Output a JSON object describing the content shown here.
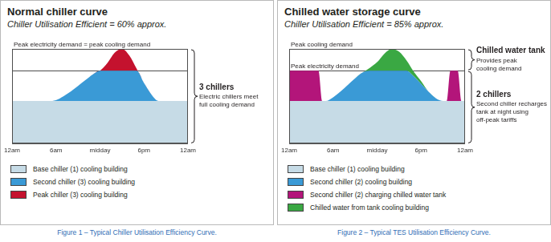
{
  "chart_data": [
    {
      "type": "area",
      "stacked": true,
      "title": "Normal chiller curve",
      "subtitle": "Chiller Utilisation Efficient = 60% approx.",
      "caption": "Figure 1 – Typical Chiller Utilisation Efficiency Curve.",
      "x": [
        0,
        1,
        2,
        3,
        4,
        5,
        6,
        7,
        8,
        9,
        10,
        11,
        12,
        13,
        14,
        15,
        16,
        17,
        18,
        19,
        20,
        21,
        22,
        23,
        24
      ],
      "xlim": [
        0,
        24
      ],
      "xticks": [
        {
          "value": 0,
          "label": "12am"
        },
        {
          "value": 6,
          "label": "6am"
        },
        {
          "value": 12,
          "label": "midday"
        },
        {
          "value": 18,
          "label": "6pm"
        },
        {
          "value": 24,
          "label": "12am"
        }
      ],
      "ylim": [
        0,
        100
      ],
      "yticks": [
        0,
        45,
        77,
        100
      ],
      "grid": true,
      "tick_labels": "x",
      "legend": "bottom",
      "series": [
        {
          "name": "Base chiller (1) cooling building",
          "color": "#c6dbe6",
          "values": [
            45,
            45,
            45,
            45,
            45,
            45,
            45,
            45,
            45,
            45,
            45,
            45,
            45,
            45,
            45,
            45,
            45,
            45,
            45,
            45,
            45,
            45,
            45,
            45,
            45
          ]
        },
        {
          "name": "Second chiller (3) cooling building",
          "color": "#3a9ad6",
          "values": [
            0,
            0,
            0,
            0,
            0,
            0,
            1,
            5,
            10,
            16,
            22,
            28,
            32,
            32,
            32,
            32,
            32,
            32,
            19,
            7,
            0,
            0,
            0,
            0,
            0
          ]
        },
        {
          "name": "Peak chiller (3) cooling building",
          "color": "#c4122e",
          "values": [
            0,
            0,
            0,
            0,
            0,
            0,
            0,
            0,
            0,
            0,
            0,
            0,
            0,
            8,
            19,
            23,
            16,
            2,
            0,
            0,
            0,
            0,
            0,
            0,
            0
          ]
        }
      ],
      "annotations": [
        {
          "text": "Peak electricity demand = peak cooling demand",
          "y": 100
        }
      ],
      "brackets": [
        {
          "from": 0,
          "to": 100,
          "heading": "3 chillers",
          "text": [
            "Electric chillers meet",
            "full cooling demand"
          ]
        }
      ]
    },
    {
      "type": "area",
      "stacked": true,
      "title": "Chilled water storage curve",
      "subtitle": "Chiller Utilisation Efficient = 85% approx.",
      "caption": "Figure 2 – Typical TES Utilisation Efficiency Curve.",
      "x": [
        0,
        1,
        2,
        3,
        4,
        4.5,
        5,
        6,
        7,
        8,
        9,
        10,
        11,
        12,
        13,
        14,
        15,
        16,
        17,
        18,
        19,
        20,
        21,
        21.5,
        22,
        23,
        23.5,
        24
      ],
      "xlim": [
        0,
        24
      ],
      "xticks": [
        {
          "value": 0,
          "label": "12am"
        },
        {
          "value": 6,
          "label": "6am"
        },
        {
          "value": 12,
          "label": "midday"
        },
        {
          "value": 18,
          "label": "6pm"
        },
        {
          "value": 24,
          "label": "12am"
        }
      ],
      "ylim": [
        0,
        100
      ],
      "yticks": [
        0,
        45,
        77,
        100
      ],
      "grid": true,
      "tick_labels": "x",
      "legend": "bottom",
      "series": [
        {
          "name": "Base chiller (1) cooling building",
          "color": "#c6dbe6",
          "values": [
            45,
            45,
            45,
            45,
            45,
            45,
            45,
            45,
            45,
            45,
            45,
            45,
            45,
            45,
            45,
            45,
            45,
            45,
            45,
            45,
            45,
            45,
            45,
            45,
            45,
            45,
            45,
            45
          ]
        },
        {
          "name": "Second chiller (2) cooling building",
          "color": "#3a9ad6",
          "values": [
            0,
            0,
            0,
            0,
            0,
            0,
            0,
            4,
            10,
            17,
            24,
            30,
            32,
            32,
            32,
            32,
            32,
            32,
            26,
            18,
            10,
            3,
            0,
            0,
            0,
            0,
            0,
            0
          ]
        },
        {
          "name": "Second chiller (2) charging chilled water tank",
          "color": "#b3157a",
          "values": [
            32,
            32,
            32,
            32,
            32,
            0,
            0,
            0,
            0,
            0,
            0,
            0,
            0,
            0,
            0,
            0,
            0,
            0,
            0,
            0,
            0,
            0,
            0,
            0,
            32,
            32,
            0,
            0
          ]
        },
        {
          "name": "Chilled water from tank cooling building",
          "color": "#3aa843",
          "values": [
            0,
            0,
            0,
            0,
            0,
            0,
            0,
            0,
            0,
            0,
            0,
            0,
            3,
            9,
            18,
            23,
            20,
            11,
            5,
            3,
            0,
            0,
            0,
            0,
            0,
            0,
            0,
            0
          ]
        }
      ],
      "annotations": [
        {
          "text": "Peak cooling demand",
          "y": 100
        },
        {
          "text": "Peak electricity demand",
          "y": 77
        }
      ],
      "brackets": [
        {
          "from": 77,
          "to": 100,
          "heading": "Chilled water tank",
          "text": [
            "Provides peak",
            "cooling demand"
          ]
        },
        {
          "from": 0,
          "to": 77,
          "heading": "2 chillers",
          "text": [
            "Second chiller recharges",
            "tank at night using",
            "off-peak tariffs"
          ]
        }
      ]
    }
  ]
}
